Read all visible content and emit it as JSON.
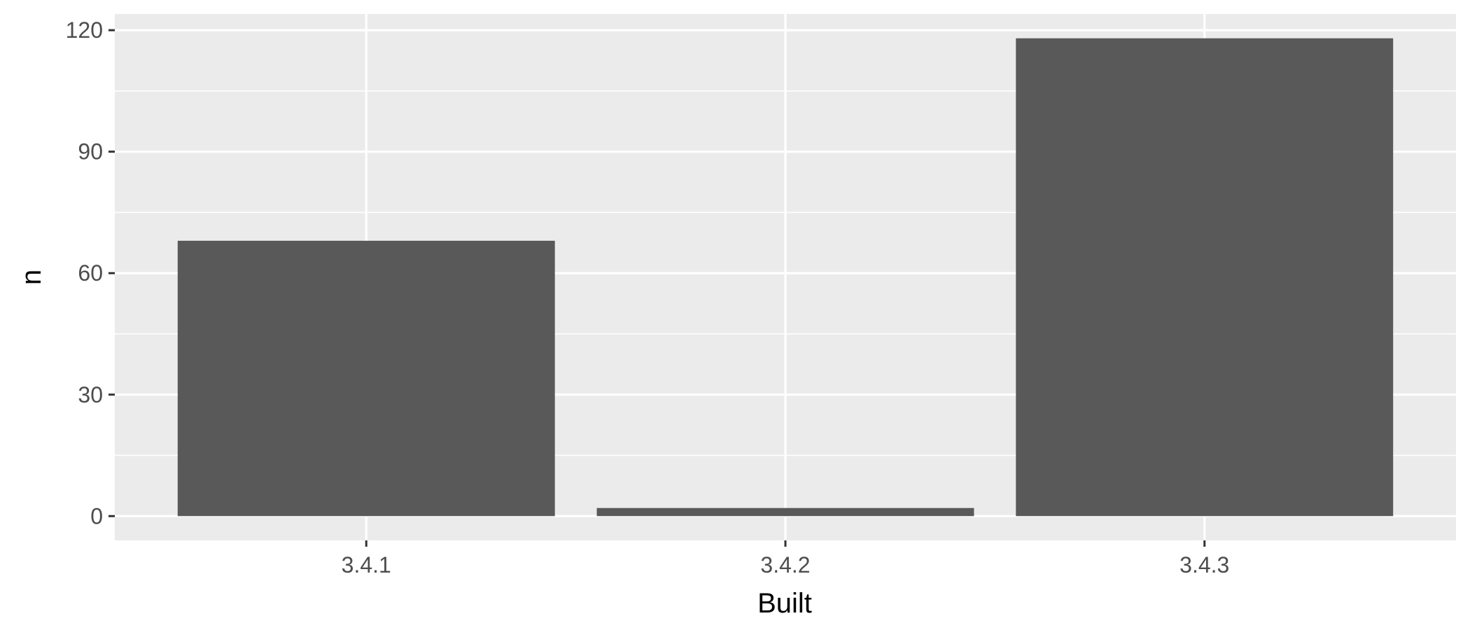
{
  "chart_data": {
    "type": "bar",
    "categories": [
      "3.4.1",
      "3.4.2",
      "3.4.3"
    ],
    "values": [
      68,
      2,
      118
    ],
    "title": "",
    "xlabel": "Built",
    "ylabel": "n",
    "ylim": [
      -6,
      124
    ],
    "yticks": [
      0,
      30,
      60,
      90,
      120
    ],
    "yticks_minor": [
      15,
      45,
      75,
      105
    ],
    "grid": true,
    "legend": "none",
    "colors": {
      "panel_background": "#ebebeb",
      "grid": "#ffffff",
      "bar_fill": "#595959",
      "tick_mark": "#333333",
      "tick_label": "#4d4d4d"
    }
  }
}
